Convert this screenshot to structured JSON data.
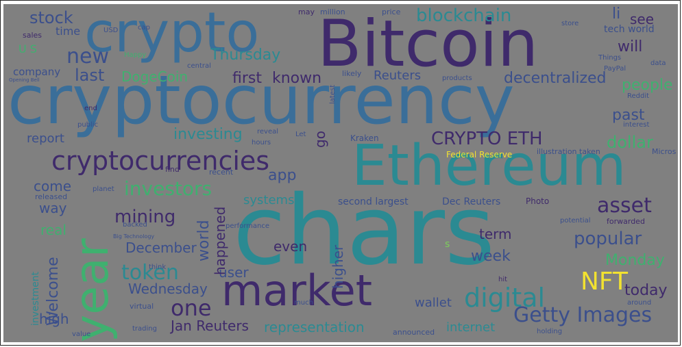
{
  "palette": {
    "background": "#808080",
    "purple": "#3f2a6b",
    "indigo": "#3b4f8c",
    "blue": "#3a6e99",
    "teal": "#2b8a92",
    "green": "#3fb06f",
    "lime": "#7ccf5a",
    "yellow": "#f2e230"
  },
  "words": [
    {
      "text": "Bitcoin",
      "c": "#3f2a6b"
    },
    {
      "text": "crypto",
      "c": "#3a6e99"
    },
    {
      "text": "cryptocurrency",
      "c": "#3a6e99"
    },
    {
      "text": "Ethereum",
      "c": "#2b8a92"
    },
    {
      "text": "chars",
      "c": "#2b8a92"
    },
    {
      "text": "market",
      "c": "#3f2a6b"
    },
    {
      "text": "year",
      "c": "#3fb06f"
    },
    {
      "text": "cryptocurrencies",
      "c": "#3f2a6b"
    },
    {
      "text": "stock",
      "c": "#3b4f8c"
    },
    {
      "text": "blockchain",
      "c": "#2b8a92"
    },
    {
      "text": "li",
      "c": "#3b4f8c"
    },
    {
      "text": "see",
      "c": "#3f2a6b"
    },
    {
      "text": "new",
      "c": "#3b4f8c"
    },
    {
      "text": "Thursday",
      "c": "#2b8a92"
    },
    {
      "text": "will",
      "c": "#3f2a6b"
    },
    {
      "text": "last",
      "c": "#3b4f8c"
    },
    {
      "text": "DogeCoin",
      "c": "#3fb06f"
    },
    {
      "text": "first",
      "c": "#3f2a6b"
    },
    {
      "text": "known",
      "c": "#3f2a6b"
    },
    {
      "text": "Reuters",
      "c": "#3b4f8c"
    },
    {
      "text": "decentralized",
      "c": "#3b4f8c"
    },
    {
      "text": "people",
      "c": "#3fb06f"
    },
    {
      "text": "past",
      "c": "#3b4f8c"
    },
    {
      "text": "CRYPTO ETH",
      "c": "#3f2a6b"
    },
    {
      "text": "dollar",
      "c": "#3fb06f"
    },
    {
      "text": "investing",
      "c": "#2b8a92"
    },
    {
      "text": "report",
      "c": "#3b4f8c"
    },
    {
      "text": "go",
      "c": "#3f2a6b"
    },
    {
      "text": "investors",
      "c": "#3fb06f"
    },
    {
      "text": "app",
      "c": "#3b4f8c"
    },
    {
      "text": "asset",
      "c": "#3f2a6b"
    },
    {
      "text": "mining",
      "c": "#3f2a6b"
    },
    {
      "text": "come",
      "c": "#3b4f8c"
    },
    {
      "text": "systems",
      "c": "#2b8a92"
    },
    {
      "text": "second largest",
      "c": "#3b4f8c"
    },
    {
      "text": "Dec Reuters",
      "c": "#3b4f8c"
    },
    {
      "text": "Photo",
      "c": "#3f2a6b"
    },
    {
      "text": "way",
      "c": "#3b4f8c"
    },
    {
      "text": "real",
      "c": "#3fb06f"
    },
    {
      "text": "popular",
      "c": "#3b4f8c"
    },
    {
      "text": "term",
      "c": "#3f2a6b"
    },
    {
      "text": "December",
      "c": "#3b4f8c"
    },
    {
      "text": "even",
      "c": "#3f2a6b"
    },
    {
      "text": "week",
      "c": "#3b4f8c"
    },
    {
      "text": "Monday",
      "c": "#3fb06f"
    },
    {
      "text": "token",
      "c": "#2b8a92"
    },
    {
      "text": "user",
      "c": "#3b4f8c"
    },
    {
      "text": "NFT",
      "c": "#f2e230"
    },
    {
      "text": "Wednesday",
      "c": "#3b4f8c"
    },
    {
      "text": "today",
      "c": "#3f2a6b"
    },
    {
      "text": "one",
      "c": "#3f2a6b"
    },
    {
      "text": "digital",
      "c": "#2b8a92"
    },
    {
      "text": "Getty Images",
      "c": "#3b4f8c"
    },
    {
      "text": "wallet",
      "c": "#3b4f8c"
    },
    {
      "text": "high",
      "c": "#3b4f8c"
    },
    {
      "text": "Jan Reuters",
      "c": "#3f2a6b"
    },
    {
      "text": "representation",
      "c": "#2b8a92"
    },
    {
      "text": "internet",
      "c": "#2b8a92"
    },
    {
      "text": "time",
      "c": "#3b4f8c"
    },
    {
      "text": "U S",
      "c": "#3fb06f"
    },
    {
      "text": "company",
      "c": "#3b4f8c"
    },
    {
      "text": "Welcome",
      "c": "#3b4f8c"
    },
    {
      "text": "investment",
      "c": "#2b8a92"
    },
    {
      "text": "world",
      "c": "#3b4f8c"
    },
    {
      "text": "happened",
      "c": "#3f2a6b"
    },
    {
      "text": "higher",
      "c": "#3b4f8c"
    },
    {
      "text": "Federal Reserve",
      "c": "#f2e230"
    },
    {
      "text": "Kraken",
      "c": "#3b4f8c"
    },
    {
      "text": "tech world",
      "c": "#3b4f8c"
    },
    {
      "text": "may",
      "c": "#3f2a6b"
    },
    {
      "text": "million",
      "c": "#3b4f8c"
    },
    {
      "text": "price",
      "c": "#3b4f8c"
    },
    {
      "text": "sales",
      "c": "#3f2a6b"
    },
    {
      "text": "USD",
      "c": "#3b4f8c"
    },
    {
      "text": "cap",
      "c": "#3b4f8c"
    },
    {
      "text": "store",
      "c": "#3b4f8c"
    },
    {
      "text": "Happy",
      "c": "#3fb06f"
    },
    {
      "text": "central",
      "c": "#3b4f8c"
    },
    {
      "text": "Things",
      "c": "#3b4f8c"
    },
    {
      "text": "PayPal",
      "c": "#3b4f8c"
    },
    {
      "text": "data",
      "c": "#3b4f8c"
    },
    {
      "text": "products",
      "c": "#3b4f8c"
    },
    {
      "text": "likely",
      "c": "#3b4f8c"
    },
    {
      "text": "latest",
      "c": "#3b4f8c"
    },
    {
      "text": "Reddit",
      "c": "#3b4f8c"
    },
    {
      "text": "end",
      "c": "#3f2a6b"
    },
    {
      "text": "public",
      "c": "#3b4f8c"
    },
    {
      "text": "reveal",
      "c": "#3b4f8c"
    },
    {
      "text": "Let",
      "c": "#3b4f8c"
    },
    {
      "text": "hours",
      "c": "#3b4f8c"
    },
    {
      "text": "interest",
      "c": "#3b4f8c"
    },
    {
      "text": "illustration taken",
      "c": "#3b4f8c"
    },
    {
      "text": "Micros",
      "c": "#3b4f8c"
    },
    {
      "text": "find",
      "c": "#3f2a6b"
    },
    {
      "text": "recent",
      "c": "#3b4f8c"
    },
    {
      "text": "planet",
      "c": "#3b4f8c"
    },
    {
      "text": "released",
      "c": "#3b4f8c"
    },
    {
      "text": "backed",
      "c": "#3b4f8c"
    },
    {
      "text": "performance",
      "c": "#3b4f8c"
    },
    {
      "text": "potential",
      "c": "#3b4f8c"
    },
    {
      "text": "forwarded",
      "c": "#3f2a6b"
    },
    {
      "text": "think",
      "c": "#3b4f8c"
    },
    {
      "text": "virtual",
      "c": "#3b4f8c"
    },
    {
      "text": "trading",
      "c": "#3b4f8c"
    },
    {
      "text": "value",
      "c": "#3b4f8c"
    },
    {
      "text": "much",
      "c": "#3b4f8c"
    },
    {
      "text": "announced",
      "c": "#3b4f8c"
    },
    {
      "text": "holding",
      "c": "#3b4f8c"
    },
    {
      "text": "hit",
      "c": "#3f2a6b"
    },
    {
      "text": "around",
      "c": "#3b4f8c"
    },
    {
      "text": "s",
      "c": "#7ccf5a"
    },
    {
      "text": "Big Technology",
      "c": "#3b4f8c"
    },
    {
      "text": "Opening Bell",
      "c": "#3b4f8c"
    }
  ]
}
